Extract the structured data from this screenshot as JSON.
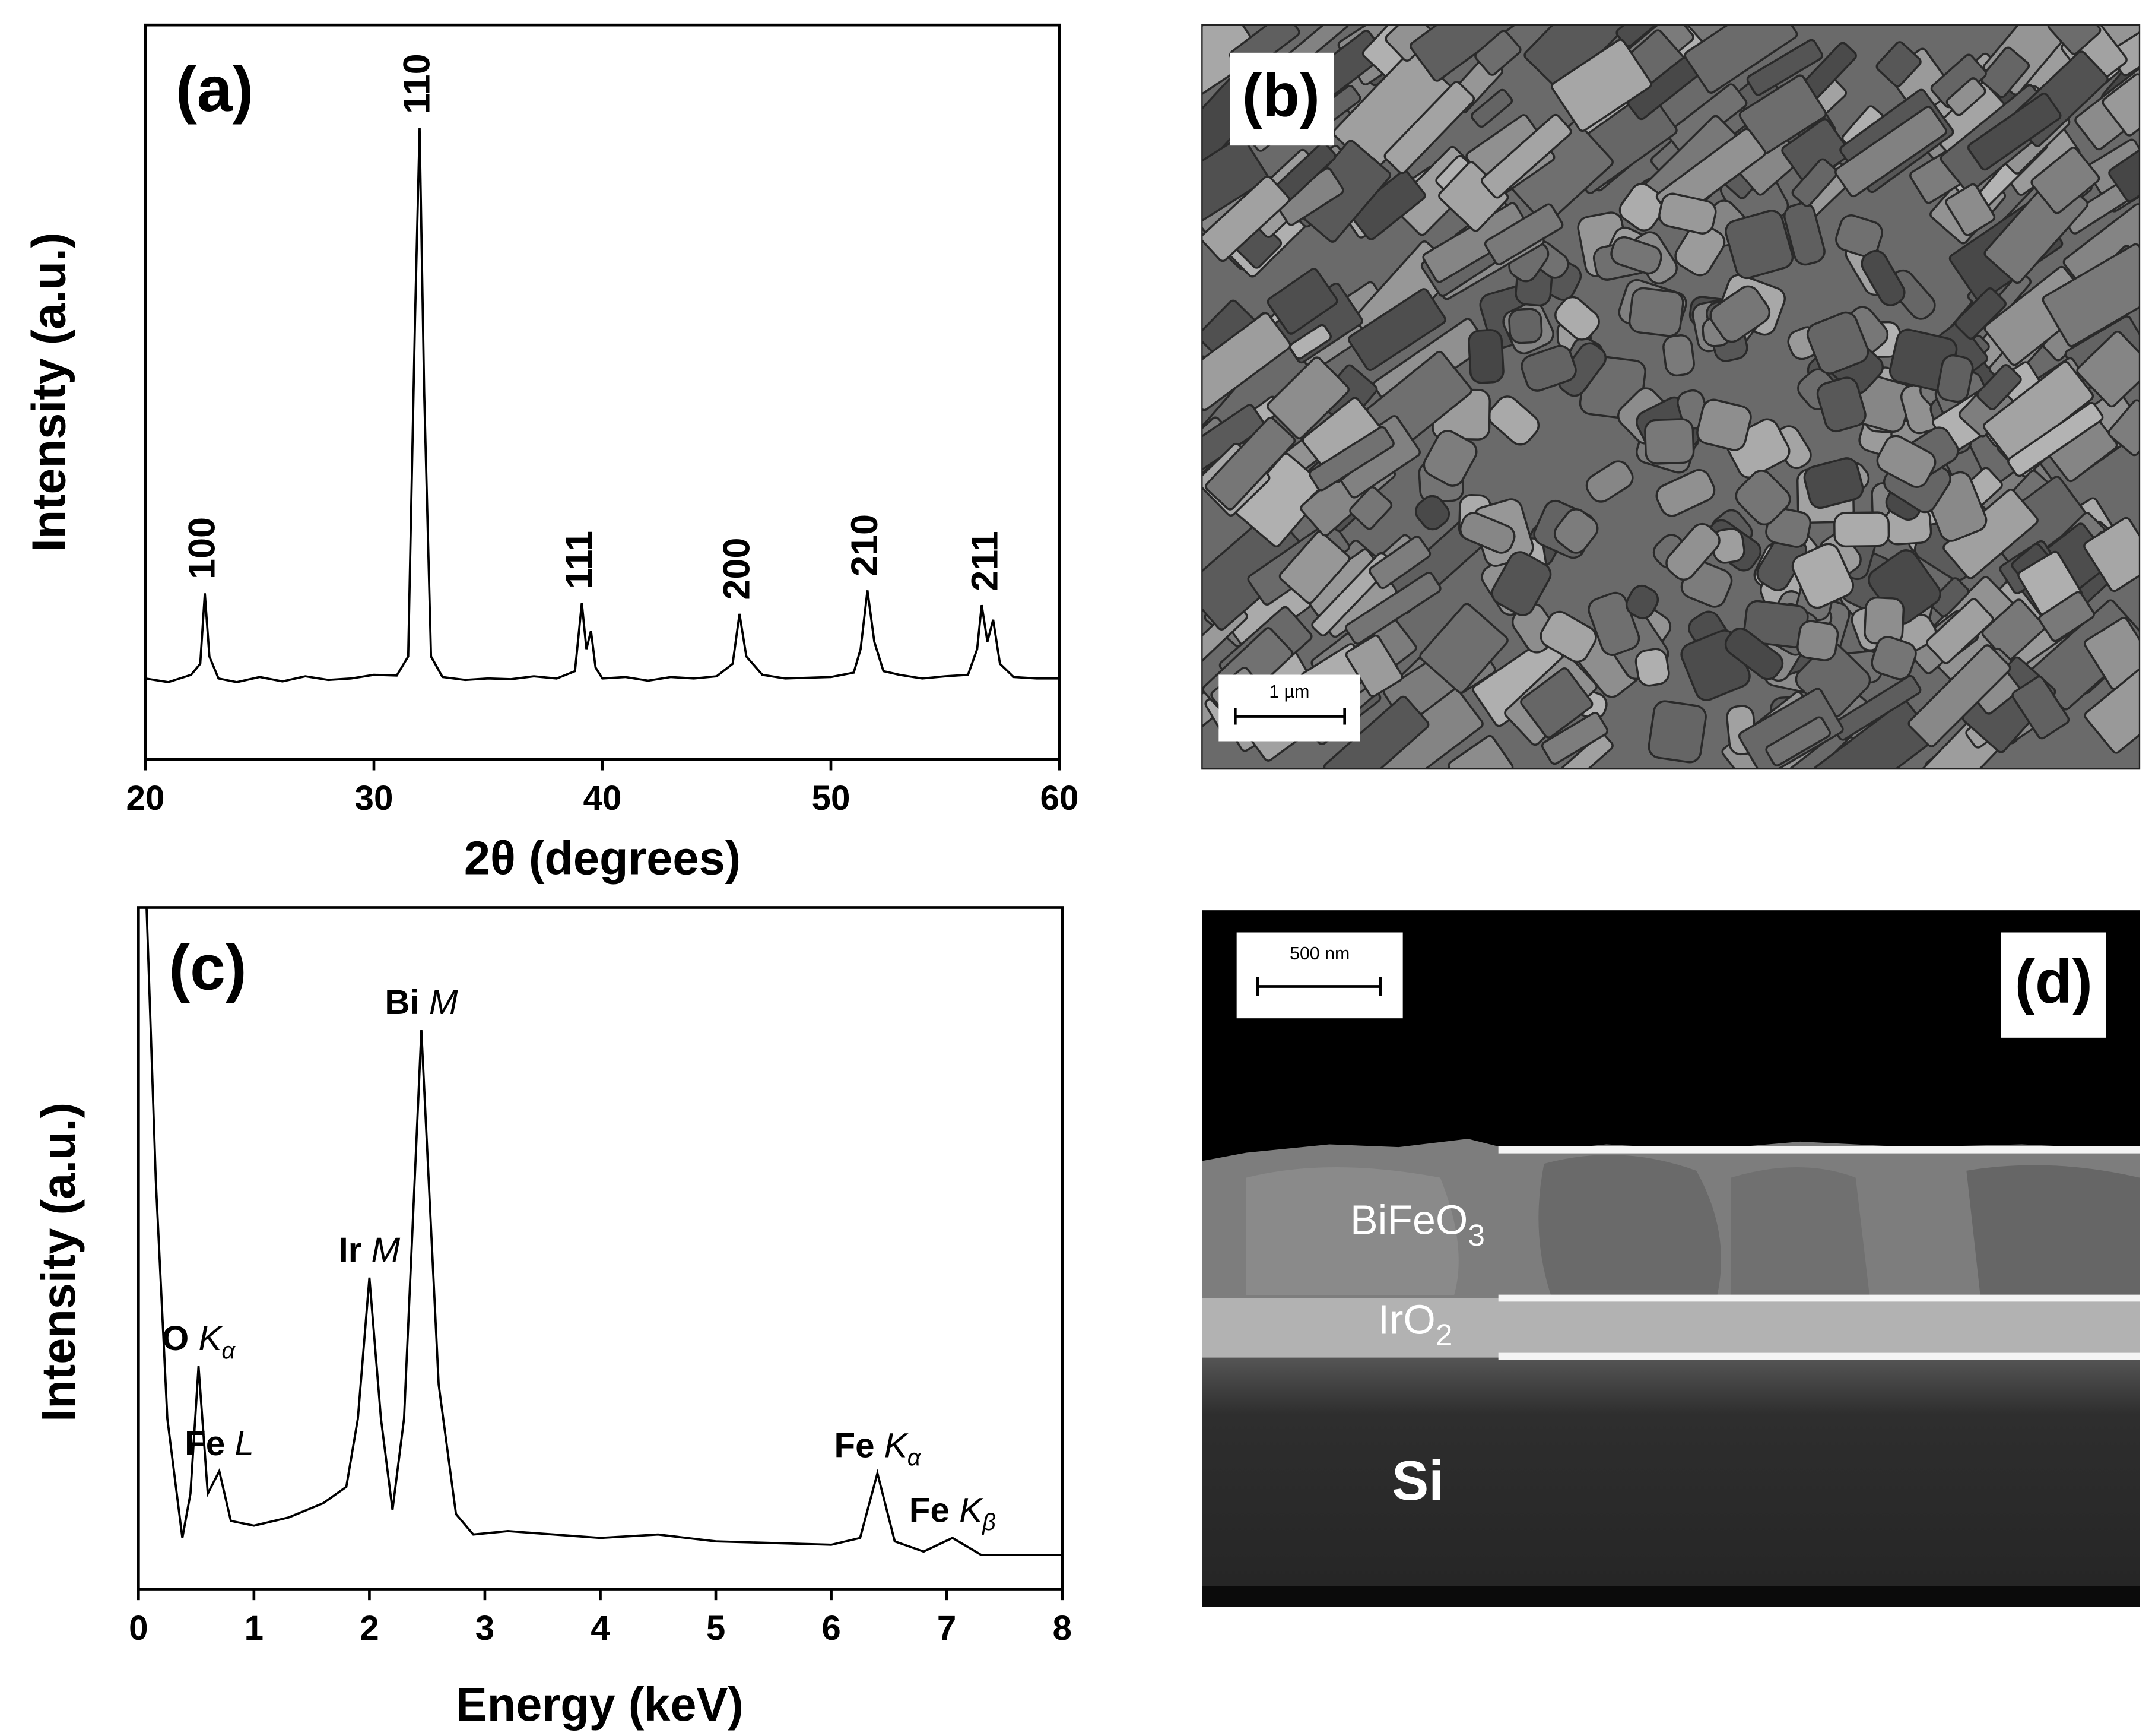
{
  "chart_data": [
    {
      "type": "line",
      "panel_label": "(a)",
      "x_label": "2θ (degrees)",
      "y_label": "Intensity (a.u.)",
      "x": [
        20,
        21,
        22,
        22.4,
        22.6,
        22.8,
        23.2,
        24,
        25,
        26,
        27,
        28,
        29,
        30,
        31,
        31.5,
        31.8,
        32.0,
        32.2,
        32.5,
        33,
        34,
        35,
        36,
        37,
        38,
        38.8,
        39.1,
        39.3,
        39.5,
        39.7,
        40,
        41,
        42,
        43,
        44,
        45,
        45.7,
        46.0,
        46.3,
        47,
        48,
        49,
        50,
        51,
        51.3,
        51.6,
        51.9,
        52.3,
        53,
        54,
        55,
        56,
        56.4,
        56.6,
        56.85,
        57.1,
        57.4,
        58,
        59,
        60
      ],
      "values": [
        11,
        10.5,
        11.5,
        13,
        22.6,
        14,
        11,
        10.5,
        11.2,
        10.6,
        11.3,
        10.8,
        11,
        11.5,
        11.4,
        14,
        60,
        86,
        50,
        14,
        11.2,
        10.8,
        11,
        10.9,
        11.3,
        11,
        12,
        21.3,
        15,
        17.5,
        12.5,
        11,
        11.2,
        10.7,
        11.2,
        11,
        11.3,
        13,
        19.8,
        14,
        11.5,
        11,
        11.1,
        11.2,
        11.8,
        15,
        23,
        16,
        12,
        11.5,
        11,
        11.3,
        11.5,
        15,
        21,
        16,
        19,
        13,
        11.2,
        11,
        11
      ],
      "color": "#000000",
      "xlim": [
        20,
        60
      ],
      "xticks": [
        20,
        30,
        40,
        50,
        60
      ],
      "ylim": [
        0,
        100
      ],
      "annotations": [
        {
          "text": "100",
          "x": 22.6
        },
        {
          "text": "110",
          "x": 32.0
        },
        {
          "text": "111",
          "x": 39.1
        },
        {
          "text": "200",
          "x": 46.0
        },
        {
          "text": "210",
          "x": 51.6
        },
        {
          "text": "211",
          "x": 56.85
        }
      ]
    },
    {
      "type": "line",
      "panel_label": "(c)",
      "x_label": "Energy (keV)",
      "y_label": "Intensity (a.u.)",
      "x": [
        0.07,
        0.15,
        0.25,
        0.38,
        0.45,
        0.52,
        0.6,
        0.7,
        0.8,
        1.0,
        1.3,
        1.6,
        1.8,
        1.9,
        2.0,
        2.1,
        2.2,
        2.3,
        2.45,
        2.6,
        2.75,
        2.9,
        3.2,
        4.0,
        4.5,
        5.0,
        6.0,
        6.25,
        6.4,
        6.55,
        6.8,
        7.05,
        7.3,
        8.0
      ],
      "values": [
        100,
        60,
        25,
        7.5,
        14,
        32.7,
        14,
        17.3,
        10,
        9.3,
        10.5,
        12.6,
        15,
        25,
        45.7,
        25,
        11.6,
        25,
        82,
        30,
        11,
        8,
        8.5,
        7.5,
        8,
        7,
        6.5,
        7.5,
        17,
        7,
        5.5,
        7.5,
        5,
        5
      ],
      "color": "#000000",
      "xlim": [
        0,
        8
      ],
      "xticks": [
        0,
        1,
        2,
        3,
        4,
        5,
        6,
        7,
        8
      ],
      "ylim": [
        0,
        100
      ],
      "annotations": [
        {
          "text": "O",
          "symbol": "K",
          "sub": "α",
          "x": 0.52
        },
        {
          "text": "Fe",
          "symbol": "L",
          "x": 0.7
        },
        {
          "text": "Ir",
          "symbol": "M",
          "x": 2.0
        },
        {
          "text": "Bi",
          "symbol": "M",
          "x": 2.45
        },
        {
          "text": "Fe",
          "symbol": "K",
          "sub": "α",
          "x": 6.4
        },
        {
          "text": "Fe",
          "symbol": "K",
          "sub": "β",
          "x": 7.05
        }
      ]
    }
  ],
  "images": [
    {
      "panel_label": "(b)",
      "scale_bar": "1 µm"
    },
    {
      "panel_label": "(d)",
      "scale_bar": "500 nm",
      "layers": [
        {
          "text": "BiFeO",
          "sub": "3"
        },
        {
          "text": "IrO",
          "sub": "2"
        },
        {
          "text": "Si"
        }
      ]
    }
  ]
}
